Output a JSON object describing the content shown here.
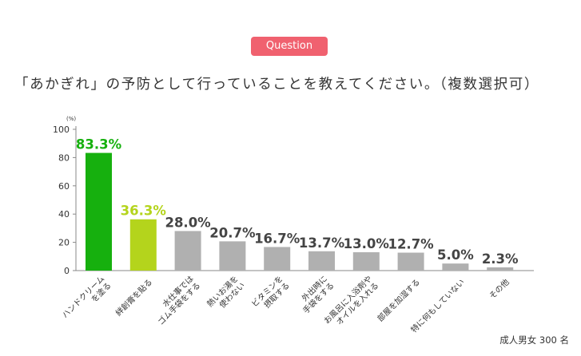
{
  "header": {
    "badge": "Question",
    "question": "「あかぎれ」の予防として行っていることを教えてください。（複数選択可）"
  },
  "footnote": "成人男女 300 名",
  "colors": {
    "badge": "#f0616f",
    "highlight1": "#16b00e",
    "highlight2": "#b4d41c",
    "other": "#b0b0b0",
    "axis": "#888888"
  },
  "chart_data": {
    "type": "bar",
    "unit": "(%)",
    "ylim": [
      0,
      100
    ],
    "yticks": [
      0,
      20,
      40,
      60,
      80,
      100
    ],
    "categories": [
      [
        "ハンドクリーム",
        "を塗る"
      ],
      [
        "絆創膏を貼る"
      ],
      [
        "水仕事では",
        "ゴム手袋をする"
      ],
      [
        "熱いお湯を",
        "使わない"
      ],
      [
        "ビタミンを",
        "摂取する"
      ],
      [
        "外出時に",
        "手袋をする"
      ],
      [
        "お風呂に入浴剤や",
        "オイルを入れる"
      ],
      [
        "部屋を加湿する"
      ],
      [
        "特に何もしていない"
      ],
      [
        "その他"
      ]
    ],
    "values": [
      83.3,
      36.3,
      28.0,
      20.7,
      16.7,
      13.7,
      13.0,
      12.7,
      5.0,
      2.3
    ],
    "value_labels": [
      "83.3%",
      "36.3%",
      "28.0%",
      "20.7%",
      "16.7%",
      "13.7%",
      "13.0%",
      "12.7%",
      "5.0%",
      "2.3%"
    ]
  }
}
